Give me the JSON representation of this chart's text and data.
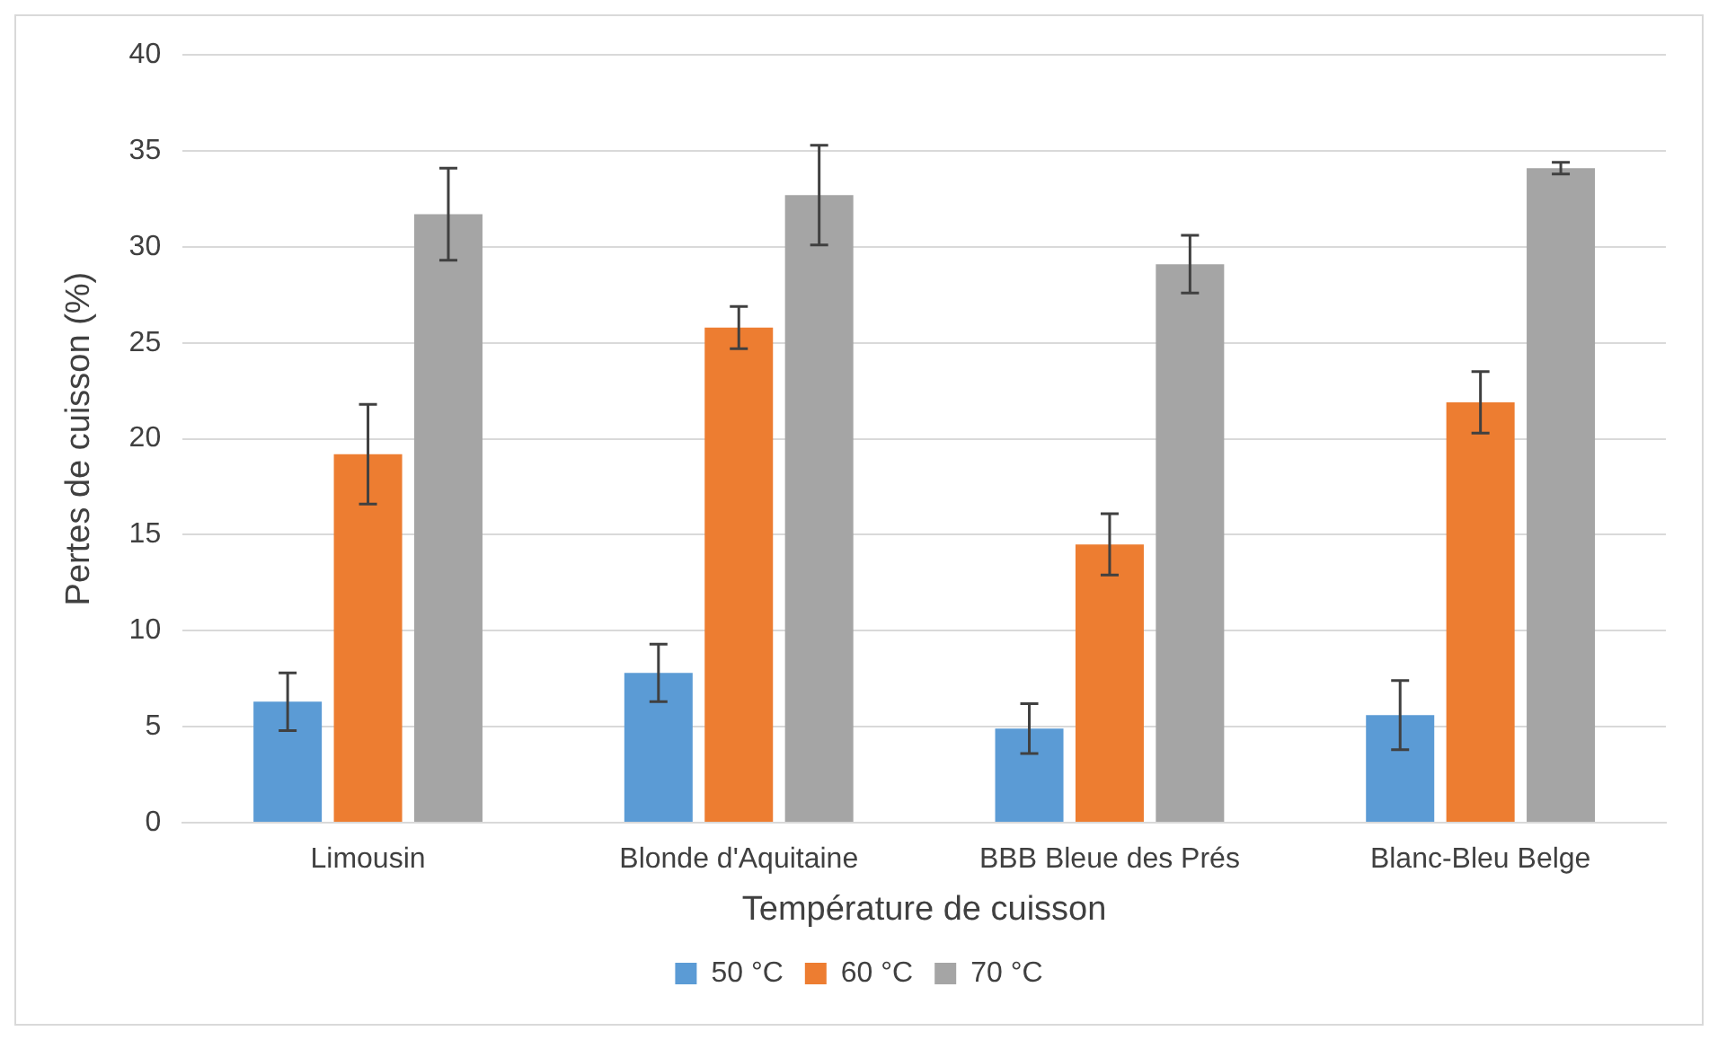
{
  "chart_data": {
    "type": "bar",
    "xlabel": "Température de cuisson",
    "ylabel": "Pertes de cuisson (%)",
    "categories": [
      "Limousin",
      "Blonde d'Aquitaine",
      "BBB Bleue des Prés",
      "Blanc-Bleu Belge"
    ],
    "series": [
      {
        "name": "50 °C",
        "color": "#5b9bd5",
        "values": [
          6.3,
          7.8,
          4.9,
          5.6
        ],
        "errors": [
          1.5,
          1.5,
          1.3,
          1.8
        ]
      },
      {
        "name": "60 °C",
        "color": "#ed7d31",
        "values": [
          19.2,
          25.8,
          14.5,
          21.9
        ],
        "errors": [
          2.6,
          1.1,
          1.6,
          1.6
        ]
      },
      {
        "name": "70 °C",
        "color": "#a5a5a5",
        "values": [
          31.7,
          32.7,
          29.1,
          34.1
        ],
        "errors": [
          2.4,
          2.6,
          1.5,
          0.3
        ]
      }
    ],
    "ylim": [
      0,
      40
    ],
    "yticks": [
      0,
      5,
      10,
      15,
      20,
      25,
      30,
      35,
      40
    ],
    "grid": "y",
    "legend": "bottom"
  }
}
